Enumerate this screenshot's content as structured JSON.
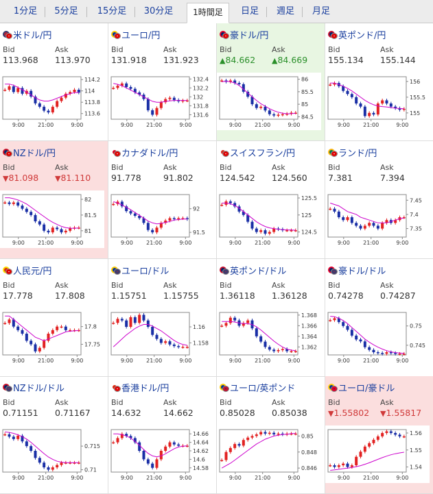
{
  "tabs": [
    "1分足",
    "5分足",
    "15分足",
    "30分足",
    "1時間足",
    "日足",
    "週足",
    "月足"
  ],
  "active_tab": 4,
  "labels": {
    "bid": "Bid",
    "ask": "Ask"
  },
  "colors": {
    "up_bg": "#e8f6e2",
    "down_bg": "#fbdede",
    "up_text": "#2a8f2a",
    "down_text": "#d03a3a",
    "ma": "#cc00cc",
    "candle_up": "#e22222",
    "candle_down": "#1a2fa6"
  },
  "pairs": [
    {
      "name": "米ドル/円",
      "bid": "113.968",
      "ask": "113.970",
      "state": "none",
      "flags": [
        "us",
        "jp"
      ],
      "yticks": [
        "114.2",
        "114",
        "113.8",
        "113.6"
      ],
      "xticks": [
        "9:00",
        "21:00",
        "9:00"
      ],
      "ylim": [
        113.5,
        114.25
      ],
      "series": [
        114.02,
        114.08,
        113.98,
        114.05,
        113.95,
        114.0,
        113.9,
        113.78,
        113.72,
        113.65,
        113.62,
        113.72,
        113.82,
        113.88,
        113.95,
        113.98,
        114.02,
        113.97
      ],
      "ma": [
        114.12,
        114.12,
        114.1,
        114.06,
        114.02,
        113.98,
        113.93,
        113.88,
        113.84,
        113.82,
        113.82,
        113.84,
        113.87,
        113.9,
        113.93,
        113.95,
        113.97,
        113.97
      ]
    },
    {
      "name": "ユーロ/円",
      "bid": "131.918",
      "ask": "131.923",
      "state": "none",
      "flags": [
        "eu",
        "jp"
      ],
      "yticks": [
        "132.4",
        "132.2",
        "132",
        "131.8",
        "131.6"
      ],
      "xticks": [
        "9:00",
        "21:00",
        "9:00"
      ],
      "ylim": [
        131.5,
        132.45
      ],
      "series": [
        132.2,
        132.25,
        132.3,
        132.22,
        132.18,
        132.1,
        132.05,
        131.95,
        131.7,
        131.6,
        131.75,
        131.88,
        131.95,
        131.98,
        131.93,
        131.9,
        131.92,
        131.92
      ],
      "ma": [
        132.3,
        132.28,
        132.25,
        132.2,
        132.15,
        132.1,
        132.05,
        132.0,
        131.95,
        131.9,
        131.88,
        131.88,
        131.9,
        131.91,
        131.92,
        131.92,
        131.92,
        131.92
      ]
    },
    {
      "name": "豪ドル/円",
      "bid": "84.662",
      "ask": "84.669",
      "state": "up",
      "flags": [
        "au",
        "jp"
      ],
      "yticks": [
        "86",
        "85.5",
        "85",
        "84.5"
      ],
      "xticks": [
        "9:00",
        "21:00",
        "9:00"
      ],
      "ylim": [
        84.4,
        86.1
      ],
      "series": [
        85.95,
        85.9,
        85.95,
        85.85,
        85.8,
        85.5,
        85.3,
        85.0,
        84.85,
        84.9,
        84.75,
        84.6,
        84.55,
        84.58,
        84.6,
        84.62,
        84.66,
        84.66
      ],
      "ma": [
        85.9,
        85.92,
        85.9,
        85.85,
        85.75,
        85.6,
        85.45,
        85.3,
        85.15,
        85.02,
        84.92,
        84.82,
        84.74,
        84.68,
        84.64,
        84.62,
        84.62,
        84.64
      ]
    },
    {
      "name": "英ポンド/円",
      "bid": "155.134",
      "ask": "155.144",
      "state": "none",
      "flags": [
        "uk",
        "jp"
      ],
      "yticks": [
        "156",
        "155.5",
        "155"
      ],
      "xticks": [
        "9:00",
        "21:00",
        "9:00"
      ],
      "ylim": [
        154.8,
        156.15
      ],
      "series": [
        155.9,
        155.95,
        155.85,
        155.7,
        155.6,
        155.5,
        155.3,
        155.2,
        154.9,
        155.0,
        154.95,
        155.3,
        155.4,
        155.3,
        155.2,
        155.15,
        155.1,
        155.13
      ],
      "ma": [
        155.95,
        155.95,
        155.9,
        155.85,
        155.78,
        155.7,
        155.6,
        155.5,
        155.4,
        155.32,
        155.26,
        155.22,
        155.2,
        155.19,
        155.17,
        155.15,
        155.14,
        155.13
      ]
    },
    {
      "name": "NZドル/円",
      "bid": "81.098",
      "ask": "81.110",
      "state": "down",
      "flags": [
        "nz",
        "jp"
      ],
      "yticks": [
        "82",
        "81.5",
        "81"
      ],
      "xticks": [
        "9:00",
        "21:00",
        "9:00"
      ],
      "ylim": [
        80.8,
        82.15
      ],
      "series": [
        81.9,
        81.85,
        81.9,
        81.8,
        81.7,
        81.6,
        81.5,
        81.3,
        81.2,
        81.0,
        80.95,
        81.1,
        81.05,
        80.95,
        81.0,
        81.08,
        81.1,
        81.1
      ],
      "ma": [
        82.05,
        82.05,
        82.02,
        81.98,
        81.92,
        81.85,
        81.75,
        81.65,
        81.55,
        81.45,
        81.35,
        81.27,
        81.2,
        81.14,
        81.1,
        81.08,
        81.08,
        81.09
      ]
    },
    {
      "name": "カナダドル/円",
      "bid": "91.778",
      "ask": "91.802",
      "state": "none",
      "flags": [
        "ca",
        "jp"
      ],
      "yticks": [
        "92",
        "91.5"
      ],
      "xticks": [
        "9:00",
        "21:00",
        "9:00"
      ],
      "ylim": [
        91.4,
        92.3
      ],
      "series": [
        92.1,
        92.15,
        92.05,
        91.95,
        91.9,
        91.85,
        91.8,
        91.7,
        91.55,
        91.5,
        91.6,
        91.7,
        91.75,
        91.8,
        91.78,
        91.8,
        91.8,
        91.78
      ],
      "ma": [
        92.15,
        92.12,
        92.08,
        92.03,
        91.98,
        91.92,
        91.86,
        91.8,
        91.74,
        91.7,
        91.68,
        91.69,
        91.71,
        91.73,
        91.76,
        91.77,
        91.78,
        91.78
      ]
    },
    {
      "name": "スイスフラン/円",
      "bid": "124.542",
      "ask": "124.560",
      "state": "none",
      "flags": [
        "ch",
        "jp"
      ],
      "yticks": [
        "125.5",
        "125",
        "124.5"
      ],
      "xticks": [
        "9:00",
        "21:00",
        "9:00"
      ],
      "ylim": [
        124.35,
        125.6
      ],
      "series": [
        125.3,
        125.4,
        125.35,
        125.25,
        125.1,
        125.0,
        124.8,
        124.6,
        124.5,
        124.55,
        124.45,
        124.5,
        124.6,
        124.58,
        124.55,
        124.55,
        124.55,
        124.55
      ],
      "ma": [
        125.35,
        125.35,
        125.33,
        125.28,
        125.2,
        125.1,
        125.0,
        124.9,
        124.8,
        124.72,
        124.66,
        124.62,
        124.6,
        124.58,
        124.57,
        124.56,
        124.56,
        124.55
      ]
    },
    {
      "name": "ランド/円",
      "bid": "7.381",
      "ask": "7.394",
      "state": "none",
      "flags": [
        "za",
        "jp"
      ],
      "yticks": [
        "7.45",
        "7.4",
        "7.35"
      ],
      "xticks": [
        "9:00",
        "21:00",
        "9:00"
      ],
      "ylim": [
        7.32,
        7.47
      ],
      "series": [
        7.42,
        7.41,
        7.39,
        7.38,
        7.39,
        7.37,
        7.36,
        7.35,
        7.36,
        7.37,
        7.36,
        7.35,
        7.37,
        7.38,
        7.37,
        7.38,
        7.39,
        7.39
      ],
      "ma": [
        7.44,
        7.435,
        7.43,
        7.42,
        7.41,
        7.405,
        7.4,
        7.39,
        7.385,
        7.38,
        7.375,
        7.37,
        7.37,
        7.37,
        7.375,
        7.38,
        7.385,
        7.387
      ]
    },
    {
      "name": "人民元/円",
      "bid": "17.778",
      "ask": "17.808",
      "state": "none",
      "flags": [
        "cn",
        "jp"
      ],
      "yticks": [
        "17.8",
        "17.75"
      ],
      "xticks": [
        "9:00",
        "21:00",
        "9:00"
      ],
      "ylim": [
        17.72,
        17.84
      ],
      "series": [
        17.81,
        17.82,
        17.8,
        17.79,
        17.78,
        17.76,
        17.75,
        17.73,
        17.74,
        17.76,
        17.78,
        17.79,
        17.8,
        17.8,
        17.79,
        17.79,
        17.79,
        17.79
      ],
      "ma": [
        17.83,
        17.83,
        17.82,
        17.81,
        17.8,
        17.79,
        17.78,
        17.77,
        17.765,
        17.76,
        17.765,
        17.77,
        17.775,
        17.78,
        17.785,
        17.787,
        17.788,
        17.789
      ]
    },
    {
      "name": "ユーロ/ドル",
      "bid": "1.15751",
      "ask": "1.15755",
      "state": "none",
      "flags": [
        "eu",
        "us"
      ],
      "yticks": [
        "1.16",
        "1.158"
      ],
      "xticks": [
        "9:00",
        "21:00",
        "9:00"
      ],
      "ylim": [
        1.1565,
        1.1618
      ],
      "series": [
        1.1605,
        1.161,
        1.1608,
        1.16,
        1.1612,
        1.1605,
        1.1615,
        1.1608,
        1.16,
        1.159,
        1.1585,
        1.158,
        1.1582,
        1.1578,
        1.1576,
        1.1575,
        1.1575,
        1.1575
      ],
      "ma": [
        1.1575,
        1.158,
        1.1585,
        1.159,
        1.1594,
        1.1598,
        1.1601,
        1.1603,
        1.1603,
        1.1601,
        1.1598,
        1.1595,
        1.1591,
        1.1587,
        1.1583,
        1.158,
        1.1578,
        1.1577
      ]
    },
    {
      "name": "英ポンド/ドル",
      "bid": "1.36118",
      "ask": "1.36128",
      "state": "none",
      "flags": [
        "uk",
        "us"
      ],
      "yticks": [
        "1.368",
        "1.366",
        "1.364",
        "1.362"
      ],
      "xticks": [
        "9:00",
        "21:00",
        "9:00"
      ],
      "ylim": [
        1.3605,
        1.3685
      ],
      "series": [
        1.366,
        1.3665,
        1.3675,
        1.367,
        1.366,
        1.3665,
        1.367,
        1.3655,
        1.364,
        1.363,
        1.362,
        1.3615,
        1.3612,
        1.3614,
        1.3616,
        1.3612,
        1.3612,
        1.3612
      ],
      "ma": [
        1.3668,
        1.3668,
        1.3668,
        1.3667,
        1.3665,
        1.3664,
        1.3664,
        1.3662,
        1.3658,
        1.3652,
        1.3645,
        1.3638,
        1.3631,
        1.3625,
        1.362,
        1.3616,
        1.3614,
        1.3613
      ]
    },
    {
      "name": "豪ドル/ドル",
      "bid": "0.74278",
      "ask": "0.74287",
      "state": "none",
      "flags": [
        "au",
        "us"
      ],
      "yticks": [
        "0.75",
        "0.745"
      ],
      "xticks": [
        "9:00",
        "21:00",
        "9:00"
      ],
      "ylim": [
        0.7425,
        0.7535
      ],
      "series": [
        0.7515,
        0.752,
        0.751,
        0.75,
        0.749,
        0.7475,
        0.7465,
        0.746,
        0.7445,
        0.7438,
        0.7432,
        0.743,
        0.7428,
        0.7432,
        0.743,
        0.7428,
        0.7428,
        0.7428
      ],
      "ma": [
        0.7525,
        0.7524,
        0.752,
        0.7514,
        0.7506,
        0.7496,
        0.7486,
        0.7476,
        0.7466,
        0.7458,
        0.7451,
        0.7445,
        0.744,
        0.7436,
        0.7433,
        0.7431,
        0.743,
        0.7429
      ]
    },
    {
      "name": "NZドル/ドル",
      "bid": "0.71151",
      "ask": "0.71167",
      "state": "none",
      "flags": [
        "nz",
        "us"
      ],
      "yticks": [
        "0.715",
        "0.71"
      ],
      "xticks": [
        "9:00",
        "21:00",
        "9:00"
      ],
      "ylim": [
        0.7095,
        0.7185
      ],
      "series": [
        0.7175,
        0.717,
        0.7165,
        0.7172,
        0.716,
        0.715,
        0.714,
        0.7125,
        0.7115,
        0.7105,
        0.71,
        0.7105,
        0.711,
        0.7115,
        0.7115,
        0.7115,
        0.7115,
        0.7115
      ],
      "ma": [
        0.718,
        0.7179,
        0.7177,
        0.7174,
        0.717,
        0.7165,
        0.7158,
        0.715,
        0.7142,
        0.7134,
        0.7127,
        0.7122,
        0.7118,
        0.7116,
        0.7115,
        0.7115,
        0.7115,
        0.7115
      ]
    },
    {
      "name": "香港ドル/円",
      "bid": "14.632",
      "ask": "14.662",
      "state": "none",
      "flags": [
        "hk",
        "jp"
      ],
      "yticks": [
        "14.66",
        "14.64",
        "14.62",
        "14.6",
        "14.58"
      ],
      "xticks": [
        "9:00",
        "21:00",
        "9:00"
      ],
      "ylim": [
        14.57,
        14.67
      ],
      "series": [
        14.64,
        14.65,
        14.66,
        14.655,
        14.65,
        14.64,
        14.62,
        14.6,
        14.59,
        14.58,
        14.6,
        14.62,
        14.63,
        14.64,
        14.635,
        14.632,
        14.632,
        14.632
      ],
      "ma": [
        14.66,
        14.66,
        14.658,
        14.655,
        14.65,
        14.642,
        14.633,
        14.623,
        14.614,
        14.608,
        14.606,
        14.608,
        14.613,
        14.619,
        14.625,
        14.629,
        14.631,
        14.632
      ]
    },
    {
      "name": "ユーロ/英ポンド",
      "bid": "0.85028",
      "ask": "0.85038",
      "state": "none",
      "flags": [
        "eu",
        "uk"
      ],
      "yticks": [
        "0.85",
        "0.848",
        "0.846"
      ],
      "xticks": [
        "9:00",
        "21:00",
        "9:00"
      ],
      "ylim": [
        0.8455,
        0.8508
      ],
      "series": [
        0.847,
        0.848,
        0.8485,
        0.849,
        0.8488,
        0.8495,
        0.8498,
        0.85,
        0.8502,
        0.8505,
        0.8503,
        0.8504,
        0.8502,
        0.8503,
        0.8502,
        0.8503,
        0.8503,
        0.8503
      ],
      "ma": [
        0.846,
        0.8463,
        0.8466,
        0.847,
        0.8474,
        0.8478,
        0.8482,
        0.8486,
        0.849,
        0.8493,
        0.8496,
        0.8498,
        0.85,
        0.8501,
        0.8502,
        0.8502,
        0.8503,
        0.8503
      ]
    },
    {
      "name": "ユーロ/豪ドル",
      "bid": "1.55802",
      "ask": "1.55817",
      "state": "down",
      "flags": [
        "eu",
        "au"
      ],
      "yticks": [
        "1.56",
        "1.55",
        "1.54"
      ],
      "xticks": [
        "9:00",
        "21:00",
        "9:00"
      ],
      "ylim": [
        1.537,
        1.562
      ],
      "series": [
        1.541,
        1.54,
        1.541,
        1.542,
        1.54,
        1.541,
        1.546,
        1.549,
        1.552,
        1.554,
        1.556,
        1.558,
        1.56,
        1.561,
        1.56,
        1.559,
        1.558,
        1.558
      ],
      "ma": [
        1.538,
        1.5383,
        1.5386,
        1.539,
        1.5393,
        1.5397,
        1.5402,
        1.5408,
        1.5416,
        1.5425,
        1.5435,
        1.5445,
        1.5455,
        1.5464,
        1.5472,
        1.5478,
        1.5483,
        1.5487
      ]
    }
  ]
}
